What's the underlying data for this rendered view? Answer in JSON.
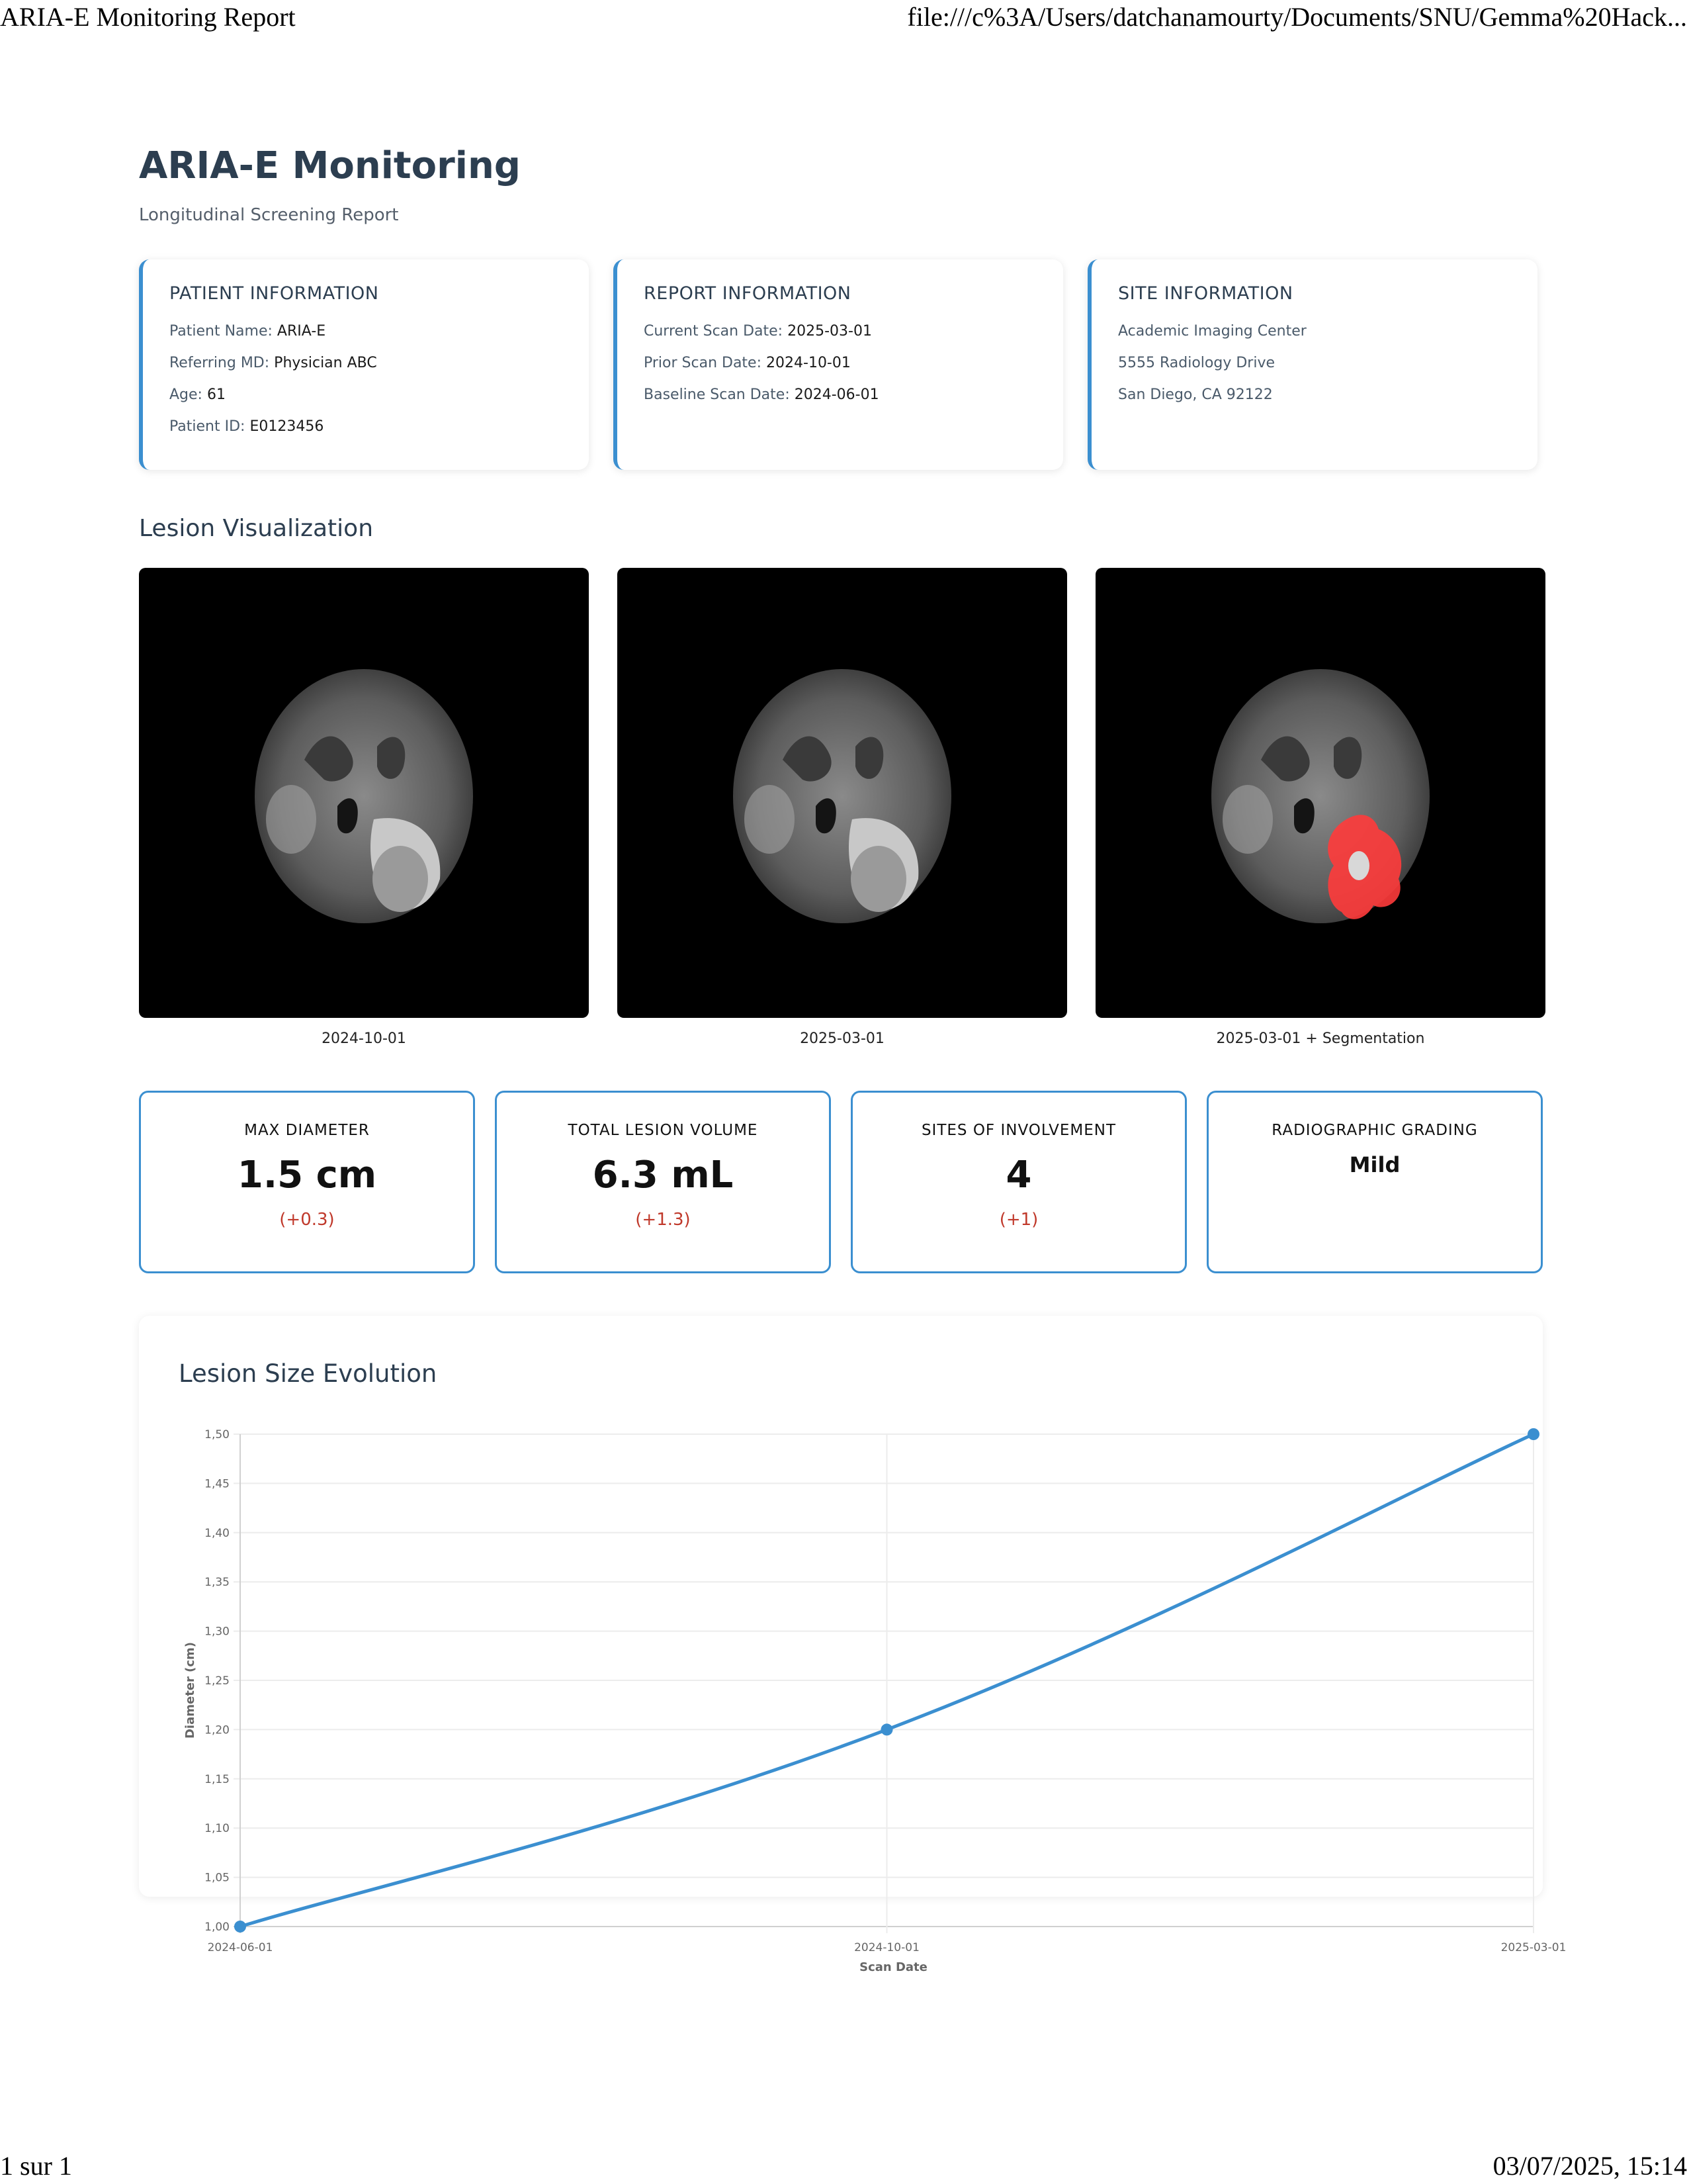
{
  "browser": {
    "page_title": "ARIA-E Monitoring Report",
    "url": "file:///c%3A/Users/datchanamourty/Documents/SNU/Gemma%20Hack...",
    "page_count": "1 sur 1",
    "datetime": "03/07/2025, 15:14"
  },
  "report": {
    "title": "ARIA-E Monitoring",
    "subtitle": "Longitudinal Screening Report"
  },
  "patient": {
    "heading": "PATIENT INFORMATION",
    "name_label": "Patient Name:",
    "name": "ARIA-E",
    "md_label": "Referring MD:",
    "md": "Physician ABC",
    "age_label": "Age:",
    "age": "61",
    "id_label": "Patient ID:",
    "id": "E0123456"
  },
  "report_info": {
    "heading": "REPORT INFORMATION",
    "current_label": "Current Scan Date:",
    "current": "2025-03-01",
    "prior_label": "Prior Scan Date:",
    "prior": "2024-10-01",
    "baseline_label": "Baseline Scan Date:",
    "baseline": "2024-06-01"
  },
  "site": {
    "heading": "SITE INFORMATION",
    "line1": "Academic Imaging Center",
    "line2": "5555 Radiology Drive",
    "line3": "San Diego, CA 92122"
  },
  "visualization": {
    "heading": "Lesion Visualization",
    "captions": [
      "2024-10-01",
      "2025-03-01",
      "2025-03-01 + Segmentation"
    ]
  },
  "metrics": {
    "max_diameter": {
      "label": "MAX DIAMETER",
      "value": "1.5 cm",
      "change": "(+0.3)"
    },
    "total_volume": {
      "label": "TOTAL LESION VOLUME",
      "value": "6.3 mL",
      "change": "(+1.3)"
    },
    "sites": {
      "label": "SITES OF INVOLVEMENT",
      "value": "4",
      "change": "(+1)"
    },
    "grading": {
      "label": "RADIOGRAPHIC GRADING",
      "value": "Mild"
    }
  },
  "colors": {
    "accent": "#3b8fd0",
    "change_red": "#c0392b",
    "segmentation": "#ff3b3b"
  },
  "chart_data": {
    "type": "line",
    "title": "Lesion Size Evolution",
    "xlabel": "Scan Date",
    "ylabel": "Diameter (cm)",
    "x": [
      "2024-06-01",
      "2024-10-01",
      "2025-03-01"
    ],
    "series": [
      {
        "values": [
          1.0,
          1.2,
          1.5
        ]
      }
    ],
    "ylim": [
      1.0,
      1.5
    ],
    "yticks": [
      "1,00",
      "1,05",
      "1,10",
      "1,15",
      "1,20",
      "1,25",
      "1,30",
      "1,35",
      "1,40",
      "1,45",
      "1,50"
    ],
    "grid": true,
    "color": "#3b8fd0"
  }
}
